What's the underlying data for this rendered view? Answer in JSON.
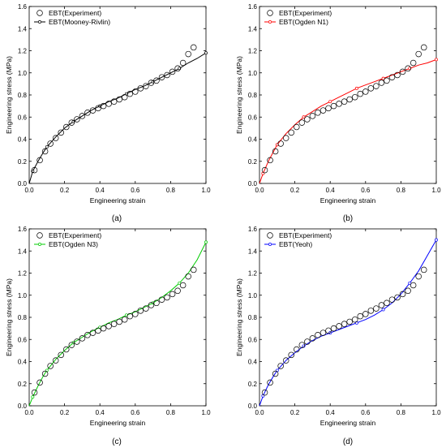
{
  "panel_labels": [
    "(a)",
    "(b)",
    "(c)",
    "(d)"
  ],
  "chart_data": [
    {
      "type": "scatter",
      "panel_label": "(a)",
      "xlabel": "Engineering strain",
      "ylabel": "Engineering stress (MPa)",
      "xlim": [
        0.0,
        1.0
      ],
      "ylim": [
        0.0,
        1.6
      ],
      "x_ticks": [
        "0.0",
        "0.2",
        "0.4",
        "0.6",
        "0.8",
        "1.0"
      ],
      "y_ticks": [
        "0.0",
        "0.2",
        "0.4",
        "0.6",
        "0.8",
        "1.0",
        "1.2",
        "1.4",
        "1.6"
      ],
      "legend_position": "top-left",
      "grid": false,
      "series": [
        {
          "name": "EBT(Experiment)",
          "kind": "markers",
          "marker": "open-circle",
          "color": "#000000",
          "x": [
            0.03,
            0.06,
            0.09,
            0.12,
            0.15,
            0.18,
            0.21,
            0.24,
            0.27,
            0.3,
            0.33,
            0.36,
            0.39,
            0.42,
            0.45,
            0.48,
            0.51,
            0.54,
            0.57,
            0.6,
            0.63,
            0.66,
            0.69,
            0.72,
            0.75,
            0.78,
            0.81,
            0.84,
            0.87,
            0.9,
            0.93
          ],
          "y": [
            0.12,
            0.21,
            0.29,
            0.36,
            0.41,
            0.46,
            0.51,
            0.55,
            0.58,
            0.61,
            0.64,
            0.66,
            0.68,
            0.7,
            0.72,
            0.74,
            0.76,
            0.78,
            0.81,
            0.83,
            0.86,
            0.88,
            0.91,
            0.93,
            0.96,
            0.98,
            1.01,
            1.04,
            1.09,
            1.17,
            1.23
          ]
        },
        {
          "name": "EBT(Mooney-Rivlin)",
          "kind": "line",
          "marker": "small-open-circle",
          "color": "#000000",
          "x": [
            0.0,
            0.02,
            0.05,
            0.08,
            0.1,
            0.15,
            0.2,
            0.25,
            0.3,
            0.35,
            0.4,
            0.45,
            0.5,
            0.55,
            0.6,
            0.65,
            0.7,
            0.75,
            0.8,
            0.85,
            0.9,
            0.95,
            1.0
          ],
          "y": [
            0.0,
            0.11,
            0.2,
            0.28,
            0.33,
            0.42,
            0.5,
            0.56,
            0.61,
            0.66,
            0.7,
            0.74,
            0.77,
            0.81,
            0.85,
            0.88,
            0.92,
            0.96,
            1.0,
            1.04,
            1.09,
            1.13,
            1.18
          ]
        }
      ]
    },
    {
      "type": "scatter",
      "panel_label": "(b)",
      "xlabel": "Engineering strain",
      "ylabel": "Engineering stress (MPa)",
      "xlim": [
        0.0,
        1.0
      ],
      "ylim": [
        0.0,
        1.6
      ],
      "x_ticks": [
        "0.0",
        "0.2",
        "0.4",
        "0.6",
        "0.8",
        "1.0"
      ],
      "y_ticks": [
        "0.0",
        "0.2",
        "0.4",
        "0.6",
        "0.8",
        "1.0",
        "1.2",
        "1.4",
        "1.6"
      ],
      "legend_position": "top-left",
      "grid": false,
      "series": [
        {
          "name": "EBT(Experiment)",
          "kind": "markers",
          "marker": "open-circle",
          "color": "#000000",
          "x": [
            0.03,
            0.06,
            0.09,
            0.12,
            0.15,
            0.18,
            0.21,
            0.24,
            0.27,
            0.3,
            0.33,
            0.36,
            0.39,
            0.42,
            0.45,
            0.48,
            0.51,
            0.54,
            0.57,
            0.6,
            0.63,
            0.66,
            0.69,
            0.72,
            0.75,
            0.78,
            0.81,
            0.84,
            0.87,
            0.9,
            0.93
          ],
          "y": [
            0.12,
            0.21,
            0.29,
            0.36,
            0.41,
            0.46,
            0.51,
            0.55,
            0.58,
            0.61,
            0.64,
            0.66,
            0.68,
            0.7,
            0.72,
            0.74,
            0.76,
            0.78,
            0.81,
            0.83,
            0.86,
            0.88,
            0.91,
            0.93,
            0.96,
            0.98,
            1.01,
            1.04,
            1.09,
            1.17,
            1.23
          ]
        },
        {
          "name": "EBT(Ogden N1)",
          "kind": "line",
          "marker": "small-open-circle",
          "color": "#ff0000",
          "x": [
            0.0,
            0.02,
            0.05,
            0.08,
            0.1,
            0.15,
            0.2,
            0.25,
            0.3,
            0.35,
            0.4,
            0.45,
            0.5,
            0.55,
            0.6,
            0.65,
            0.7,
            0.75,
            0.8,
            0.85,
            0.9,
            0.95,
            1.0
          ],
          "y": [
            0.0,
            0.09,
            0.2,
            0.29,
            0.35,
            0.45,
            0.53,
            0.6,
            0.65,
            0.7,
            0.74,
            0.78,
            0.82,
            0.86,
            0.89,
            0.92,
            0.95,
            0.98,
            1.01,
            1.04,
            1.07,
            1.09,
            1.12
          ]
        }
      ]
    },
    {
      "type": "scatter",
      "panel_label": "(c)",
      "xlabel": "Engineering strain",
      "ylabel": "Engineering stress (MPa)",
      "xlim": [
        0.0,
        1.0
      ],
      "ylim": [
        0.0,
        1.6
      ],
      "x_ticks": [
        "0.0",
        "0.2",
        "0.4",
        "0.6",
        "0.8",
        "1.0"
      ],
      "y_ticks": [
        "0.0",
        "0.2",
        "0.4",
        "0.6",
        "0.8",
        "1.0",
        "1.2",
        "1.4",
        "1.6"
      ],
      "legend_position": "top-left",
      "grid": false,
      "series": [
        {
          "name": "EBT(Experiment)",
          "kind": "markers",
          "marker": "open-circle",
          "color": "#000000",
          "x": [
            0.03,
            0.06,
            0.09,
            0.12,
            0.15,
            0.18,
            0.21,
            0.24,
            0.27,
            0.3,
            0.33,
            0.36,
            0.39,
            0.42,
            0.45,
            0.48,
            0.51,
            0.54,
            0.57,
            0.6,
            0.63,
            0.66,
            0.69,
            0.72,
            0.75,
            0.78,
            0.81,
            0.84,
            0.87,
            0.9,
            0.93
          ],
          "y": [
            0.12,
            0.21,
            0.29,
            0.36,
            0.41,
            0.46,
            0.51,
            0.55,
            0.58,
            0.61,
            0.64,
            0.66,
            0.68,
            0.7,
            0.72,
            0.74,
            0.76,
            0.78,
            0.81,
            0.83,
            0.86,
            0.88,
            0.91,
            0.93,
            0.96,
            0.98,
            1.01,
            1.04,
            1.09,
            1.17,
            1.23
          ]
        },
        {
          "name": "EBT(Ogden N3)",
          "kind": "line",
          "marker": "small-open-circle",
          "color": "#00cc00",
          "x": [
            0.0,
            0.02,
            0.05,
            0.08,
            0.1,
            0.15,
            0.2,
            0.25,
            0.3,
            0.35,
            0.4,
            0.45,
            0.5,
            0.55,
            0.6,
            0.65,
            0.7,
            0.75,
            0.8,
            0.85,
            0.9,
            0.95,
            1.0
          ],
          "y": [
            0.0,
            0.08,
            0.18,
            0.27,
            0.32,
            0.42,
            0.5,
            0.57,
            0.62,
            0.67,
            0.71,
            0.75,
            0.78,
            0.82,
            0.85,
            0.89,
            0.93,
            0.98,
            1.04,
            1.11,
            1.2,
            1.32,
            1.48
          ]
        }
      ]
    },
    {
      "type": "scatter",
      "panel_label": "(d)",
      "xlabel": "Engineering strain",
      "ylabel": "Engineering stress (MPa)",
      "xlim": [
        0.0,
        1.0
      ],
      "ylim": [
        0.0,
        1.6
      ],
      "x_ticks": [
        "0.0",
        "0.2",
        "0.4",
        "0.6",
        "0.8",
        "1.0"
      ],
      "y_ticks": [
        "0.0",
        "0.2",
        "0.4",
        "0.6",
        "0.8",
        "1.0",
        "1.2",
        "1.4",
        "1.6"
      ],
      "legend_position": "top-left",
      "grid": false,
      "series": [
        {
          "name": "EBT(Experiment)",
          "kind": "markers",
          "marker": "open-circle",
          "color": "#000000",
          "x": [
            0.03,
            0.06,
            0.09,
            0.12,
            0.15,
            0.18,
            0.21,
            0.24,
            0.27,
            0.3,
            0.33,
            0.36,
            0.39,
            0.42,
            0.45,
            0.48,
            0.51,
            0.54,
            0.57,
            0.6,
            0.63,
            0.66,
            0.69,
            0.72,
            0.75,
            0.78,
            0.81,
            0.84,
            0.87,
            0.9,
            0.93
          ],
          "y": [
            0.12,
            0.21,
            0.29,
            0.36,
            0.41,
            0.46,
            0.51,
            0.55,
            0.58,
            0.61,
            0.64,
            0.66,
            0.68,
            0.7,
            0.72,
            0.74,
            0.76,
            0.78,
            0.81,
            0.83,
            0.86,
            0.88,
            0.91,
            0.93,
            0.96,
            0.98,
            1.01,
            1.04,
            1.09,
            1.17,
            1.23
          ]
        },
        {
          "name": "EBT(Yeoh)",
          "kind": "line",
          "marker": "small-open-circle",
          "color": "#0000ff",
          "x": [
            0.0,
            0.02,
            0.05,
            0.08,
            0.1,
            0.15,
            0.2,
            0.25,
            0.3,
            0.35,
            0.4,
            0.45,
            0.5,
            0.55,
            0.6,
            0.65,
            0.7,
            0.75,
            0.8,
            0.85,
            0.9,
            0.95,
            1.0
          ],
          "y": [
            0.0,
            0.09,
            0.19,
            0.27,
            0.32,
            0.41,
            0.48,
            0.54,
            0.59,
            0.63,
            0.66,
            0.69,
            0.72,
            0.75,
            0.78,
            0.82,
            0.87,
            0.93,
            1.01,
            1.11,
            1.22,
            1.36,
            1.5
          ]
        }
      ]
    }
  ]
}
